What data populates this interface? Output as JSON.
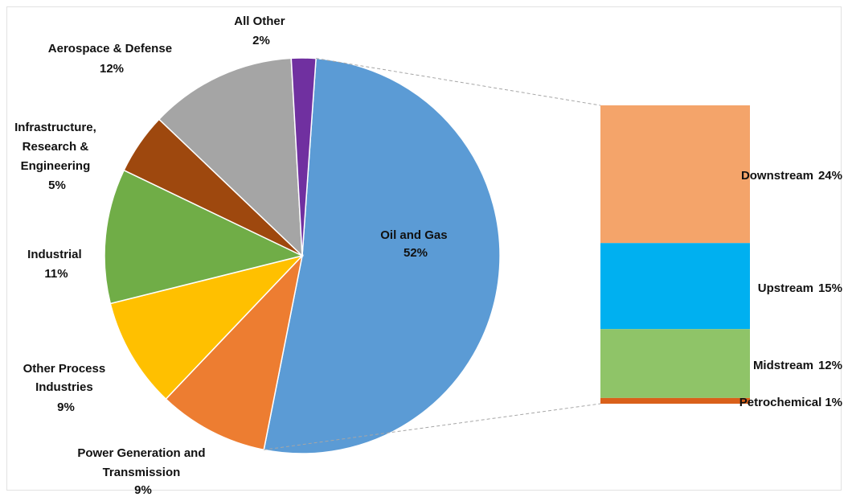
{
  "chart_data": {
    "type": "bar-of-pie",
    "pie": {
      "slices": [
        {
          "label": "Oil and Gas",
          "value_label": "52%",
          "value": 52,
          "color": "#5b9bd5"
        },
        {
          "label": "Power Generation and Transmission",
          "value_label": "9%",
          "value": 9,
          "color": "#ed7d31"
        },
        {
          "label": "Other Process Industries",
          "value_label": "9%",
          "value": 9,
          "color": "#ffc000"
        },
        {
          "label": "Industrial",
          "value_label": "11%",
          "value": 11,
          "color": "#70ad47"
        },
        {
          "label": "Infrastructure, Research & Engineering",
          "value_label": "5%",
          "value": 5,
          "color": "#9e480e"
        },
        {
          "label": "Aerospace & Defense",
          "value_label": "12%",
          "value": 12,
          "color": "#a5a5a5"
        },
        {
          "label": "All Other",
          "value_label": "2%",
          "value": 2,
          "color": "#7030a0"
        }
      ]
    },
    "bar": {
      "segments": [
        {
          "label": "Downstream",
          "value_label": "24%",
          "value": 24,
          "color": "#f4a46a"
        },
        {
          "label": "Upstream",
          "value_label": "15%",
          "value": 15,
          "color": "#00b0f0"
        },
        {
          "label": "Midstream",
          "value_label": "12%",
          "value": 12,
          "color": "#8fc468"
        },
        {
          "label": "Petrochemical",
          "value_label": "1%",
          "value": 1,
          "color": "#d9601a"
        }
      ]
    }
  }
}
